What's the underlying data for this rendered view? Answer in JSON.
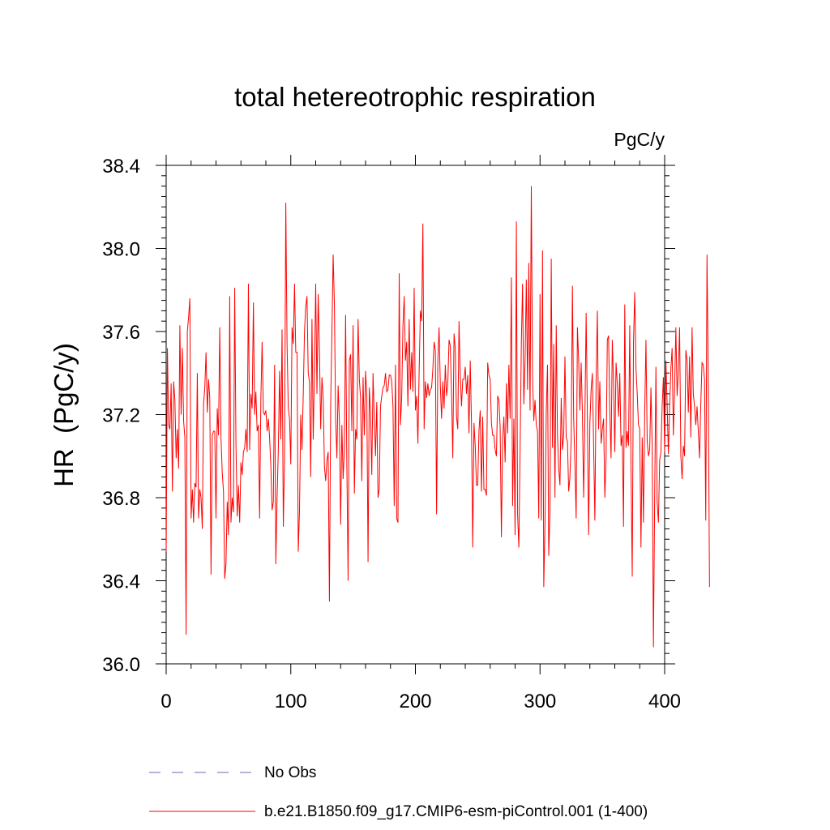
{
  "chart_data": {
    "type": "line",
    "title": "total hetereotrophic respiration",
    "units_label": "PgC/y",
    "ylabel": "HR  (PgC/y)",
    "xlabel": "",
    "xlim": [
      0,
      400
    ],
    "ylim": [
      36.0,
      38.4
    ],
    "x_ticks": [
      0,
      100,
      200,
      300,
      400
    ],
    "x_tick_labels": [
      "0",
      "100",
      "200",
      "300",
      "400"
    ],
    "y_ticks": [
      36.0,
      36.4,
      36.8,
      37.2,
      37.6,
      38.0,
      38.4
    ],
    "y_tick_labels": [
      "36.0",
      "36.4",
      "36.8",
      "37.2",
      "37.6",
      "38.0",
      "38.4"
    ],
    "grid": false,
    "legend": [
      {
        "label": "No Obs",
        "style": "dashed",
        "color": "#8a84c8"
      },
      {
        "label": "b.e21.B1850.f09_g17.CMIP6-esm-piControl.001 (1-400)",
        "style": "solid",
        "color": "#ff0000"
      }
    ],
    "series": [
      {
        "name": "b.e21.B1850.f09_g17.CMIP6-esm-piControl.001 (1-400)",
        "color": "#ff0000",
        "x_start": 0,
        "x_step": 1,
        "values": [
          36.54,
          37.52,
          37.15,
          37.13,
          37.35,
          36.83,
          37.36,
          37.27,
          36.99,
          37.13,
          36.94,
          37.63,
          37.2,
          37.52,
          37.17,
          37.09,
          36.14,
          37.6,
          37.67,
          37.76,
          36.7,
          36.84,
          36.68,
          36.87,
          36.85,
          37.4,
          36.7,
          36.84,
          36.8,
          36.65,
          37.25,
          37.33,
          37.5,
          37.21,
          37.37,
          37.28,
          36.43,
          37.1,
          37.12,
          37.12,
          36.7,
          37.23,
          37.1,
          37.62,
          37.09,
          36.92,
          36.83,
          36.41,
          36.48,
          36.78,
          36.62,
          37.77,
          36.68,
          36.8,
          36.73,
          37.81,
          37.06,
          36.71,
          36.86,
          36.68,
          36.97,
          36.91,
          37.02,
          37.04,
          37.13,
          37.02,
          37.83,
          37.03,
          37.3,
          37.23,
          37.74,
          37.2,
          37.31,
          37.12,
          37.15,
          36.7,
          37.28,
          37.55,
          37.21,
          37.2,
          37.22,
          37.12,
          37.18,
          37.09,
          36.95,
          36.74,
          36.78,
          37.44,
          36.48,
          36.8,
          37.03,
          37.41,
          37.08,
          37.61,
          36.66,
          36.99,
          38.22,
          37.54,
          37.23,
          37.18,
          36.96,
          37.62,
          37.54,
          37.83,
          37.5,
          37.5,
          36.54,
          36.74,
          37.2,
          37.03,
          37.3,
          37.6,
          37.72,
          37.77,
          37.4,
          37.36,
          36.9,
          37.66,
          37.08,
          37.41,
          37.83,
          37.3,
          37.78,
          37.51,
          37.13,
          37.38,
          37.28,
          36.95,
          36.88,
          36.98,
          37.02,
          36.3,
          37.25,
          37.59,
          37.97,
          37.73,
          37.18,
          36.99,
          37.34,
          37.17,
          36.67,
          37.15,
          36.89,
          37.03,
          37.68,
          36.95,
          36.4,
          37.46,
          37.49,
          37.12,
          37.63,
          36.82,
          37.13,
          37.08,
          37.66,
          37.37,
          37.28,
          36.88,
          37.38,
          37.1,
          37.41,
          37.29,
          36.49,
          37.33,
          37.21,
          36.91,
          37.4,
          37.18,
          37.0,
          37.26,
          36.8,
          36.84,
          37.24,
          37.29,
          37.33,
          37.34,
          37.4,
          37.31,
          37.32,
          37.39,
          37.39,
          37.36,
          37.24,
          36.76,
          37.44,
          36.7,
          36.68,
          37.88,
          37.15,
          37.28,
          37.63,
          37.77,
          37.46,
          37.55,
          37.24,
          37.66,
          37.32,
          37.5,
          37.31,
          37.81,
          37.22,
          37.29,
          37.06,
          37.41,
          37.7,
          37.65,
          38.12,
          37.13,
          37.36,
          37.28,
          37.35,
          37.29,
          37.32,
          37.33,
          37.42,
          37.55,
          37.51,
          36.72,
          37.46,
          37.62,
          37.34,
          37.18,
          37.36,
          37.23,
          37.44,
          37.29,
          37.35,
          37.56,
          37.53,
          37.3,
          36.99,
          37.59,
          37.52,
          37.19,
          37.13,
          37.65,
          37.39,
          37.24,
          37.37,
          37.37,
          37.43,
          37.3,
          37.39,
          37.11,
          37.46,
          37.16,
          36.56,
          37.16,
          37.05,
          36.86,
          36.86,
          37.12,
          37.22,
          36.83,
          37.19,
          36.84,
          36.84,
          36.81,
          37.45,
          37.39,
          37.37,
          37.16,
          37.1,
          37.1,
          37.03,
          37.0,
          37.29,
          37.27,
          37.14,
          36.61,
          37.08,
          37.19,
          36.97,
          37.35,
          37.11,
          37.44,
          37.18,
          37.86,
          36.76,
          37.18,
          36.62,
          38.13,
          36.72,
          36.56,
          37.02,
          37.54,
          37.83,
          37.25,
          37.46,
          37.85,
          37.32,
          37.93,
          37.22,
          38.3,
          37.39,
          37.17,
          37.27,
          37.15,
          37.12,
          36.7,
          37.78,
          36.69,
          37.99,
          36.37,
          36.68,
          37.21,
          37.44,
          36.52,
          36.74,
          37.95,
          37.04,
          37.54,
          36.8,
          37.63,
          37.1,
          36.94,
          36.86,
          37.28,
          37.03,
          37.1,
          37.48,
          37.09,
          37.07,
          36.83,
          36.9,
          37.08,
          37.82,
          37.18,
          36.96,
          36.7,
          37.62,
          37.46,
          37.22,
          37.45,
          37.21,
          36.8,
          37.18,
          37.69,
          37.19,
          36.62,
          37.16,
          37.32,
          37.4,
          37.06,
          36.69,
          37.36,
          37.7,
          37.13,
          37.36,
          37.06,
          37.13,
          37.18,
          36.8,
          36.99,
          37.56,
          37.58,
          37.22,
          36.99,
          37.56,
          37.35,
          37.02,
          37.45,
          37.35,
          37.19,
          37.4,
          37.05,
          37.1,
          36.66,
          37.73,
          37.04,
          37.12,
          37.05,
          37.63,
          36.94,
          36.42,
          37.55,
          37.79,
          37.42,
          37.3,
          37.15,
          37.13,
          36.56,
          37.09,
          36.68,
          37.21,
          37.56,
          37.07,
          37.0,
          37.03,
          37.33,
          37.05,
          36.08,
          36.8,
          37.43,
          36.78,
          36.68,
          36.98,
          37.02,
          37.24,
          37.38,
          37.02,
          37.46,
          37.25,
          37.01,
          37.24,
          37.42,
          37.52,
          37.1,
          37.33,
          37.62,
          37.29,
          37.41,
          37.62,
          37.0,
          36.89,
          37.05,
          37.0,
          37.51,
          37.46,
          37.21,
          37.48,
          37.09,
          37.62,
          37.3,
          37.24,
          37.15,
          37.24,
          37.12,
          36.99,
          37.25,
          37.45,
          37.44,
          37.37,
          36.69,
          37.97,
          37.36,
          36.37
        ]
      }
    ]
  }
}
